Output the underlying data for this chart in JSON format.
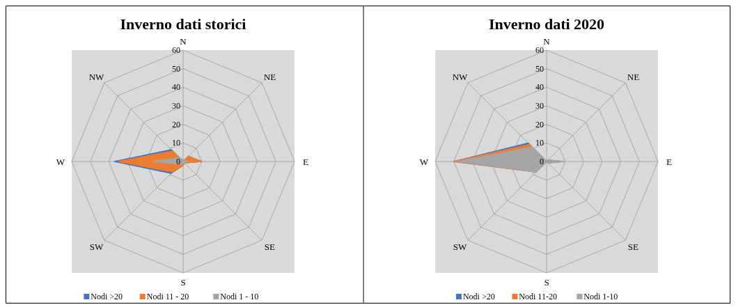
{
  "chart_data": [
    {
      "type": "radar",
      "title": "Inverno dati storici",
      "categories": [
        "N",
        "NE",
        "E",
        "SE",
        "S",
        "SW",
        "W",
        "NW"
      ],
      "ylim": [
        0,
        60
      ],
      "yticks": [
        0,
        10,
        20,
        30,
        40,
        50,
        60
      ],
      "grid": true,
      "legend": "bottom",
      "series": [
        {
          "name": "Nodi >20",
          "color": "#4472c4",
          "values": [
            0,
            4,
            10,
            1,
            2,
            9,
            37,
            9
          ]
        },
        {
          "name": "Nodi 11 - 20",
          "color": "#ed7d31",
          "values": [
            0,
            4,
            10,
            1,
            2,
            8,
            35,
            8
          ]
        },
        {
          "name": "Nodi 1 - 10",
          "color": "#a5a5a5",
          "values": [
            1,
            1,
            3,
            1,
            1,
            2,
            16,
            3
          ]
        }
      ]
    },
    {
      "type": "radar",
      "title": "Inverno dati 2020",
      "categories": [
        "N",
        "NE",
        "E",
        "SE",
        "S",
        "SW",
        "W",
        "NW"
      ],
      "ylim": [
        0,
        60
      ],
      "yticks": [
        0,
        10,
        20,
        30,
        40,
        50,
        60
      ],
      "grid": true,
      "legend": "bottom",
      "series": [
        {
          "name": "Nodi >20",
          "color": "#4472c4",
          "values": [
            0,
            1,
            9,
            1,
            0,
            8,
            50,
            14
          ]
        },
        {
          "name": "Nodi 11-20",
          "color": "#ed7d31",
          "values": [
            0,
            1,
            9,
            1,
            0,
            8,
            50,
            13
          ]
        },
        {
          "name": "Nodi 1-10",
          "color": "#a5a5a5",
          "values": [
            0,
            1,
            9,
            1,
            0,
            8,
            48,
            11
          ]
        }
      ]
    }
  ]
}
